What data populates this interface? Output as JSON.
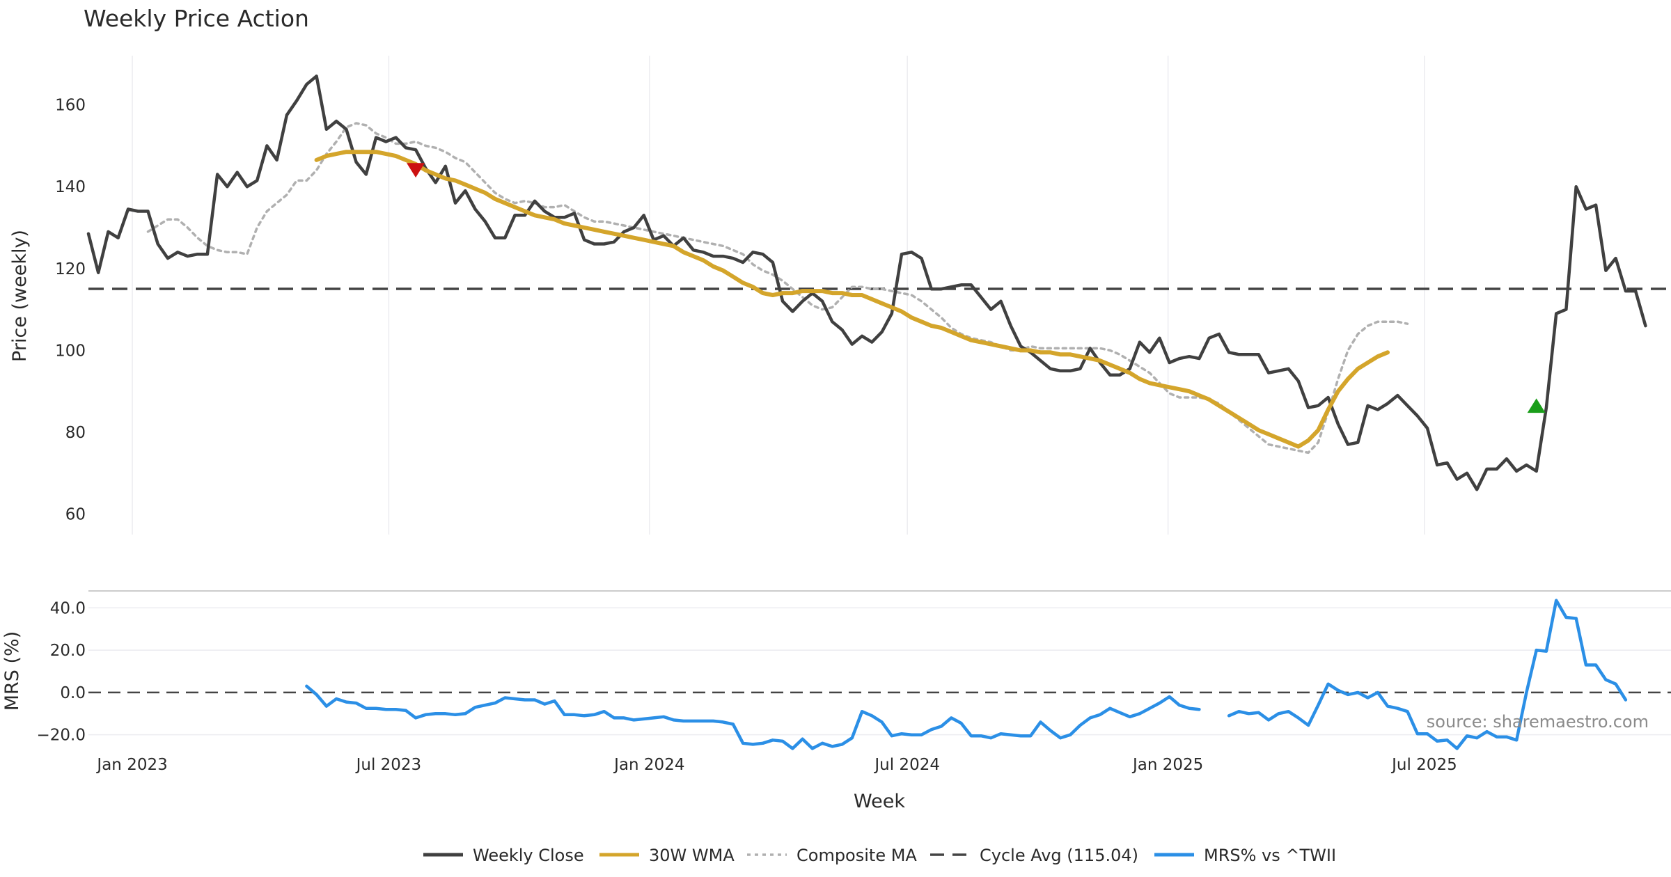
{
  "title": "Weekly Price Action",
  "source_label": "source: sharemaestro.com",
  "colors": {
    "close": "#404040",
    "wma": "#d4a52b",
    "composite": "#b0b0b0",
    "cycle": "#444444",
    "mrs": "#2b8fe6",
    "sell_marker": "#cc1111",
    "buy_marker": "#1a9e1a"
  },
  "legend": [
    {
      "key": "close",
      "label": "Weekly Close",
      "style": "solid"
    },
    {
      "key": "wma",
      "label": "30W WMA",
      "style": "solid"
    },
    {
      "key": "composite",
      "label": "Composite MA",
      "style": "dotted"
    },
    {
      "key": "cycle",
      "label": "Cycle Avg (115.04)",
      "style": "dashed"
    },
    {
      "key": "mrs",
      "label": "MRS% vs ^TWII",
      "style": "solid"
    }
  ],
  "chart_data": [
    {
      "type": "line",
      "panel": "price",
      "ylabel": "Price (weekly)",
      "ylim": [
        55,
        172
      ],
      "yticks": [
        60,
        80,
        100,
        120,
        140,
        160
      ],
      "x_dates": [
        "2022-12-01",
        "2025-12-22"
      ],
      "x_ticks": [
        {
          "date": "2023-01-01",
          "label": "Jan 2023"
        },
        {
          "date": "2023-07-01",
          "label": "Jul 2023"
        },
        {
          "date": "2024-01-01",
          "label": "Jan 2024"
        },
        {
          "date": "2024-07-01",
          "label": "Jul 2024"
        },
        {
          "date": "2025-01-01",
          "label": "Jan 2025"
        },
        {
          "date": "2025-07-01",
          "label": "Jul 2025"
        }
      ],
      "cycle_avg": 115.04,
      "series": [
        {
          "name": "Weekly Close",
          "key": "close",
          "start": "2022-12-01",
          "step_days": 7,
          "values": [
            128.5,
            119,
            129,
            127.5,
            134.5,
            134,
            134,
            126,
            122.5,
            124,
            123,
            123.5,
            123.5,
            143,
            140,
            143.5,
            140,
            141.5,
            150,
            146.5,
            157.5,
            161,
            165,
            167,
            154,
            156,
            154,
            146,
            143,
            152,
            151,
            152,
            149.5,
            149,
            144.5,
            141,
            145,
            136,
            139,
            134.5,
            131.5,
            127.5,
            127.5,
            133,
            133,
            136.5,
            134,
            132.5,
            132.5,
            133.5,
            127,
            126,
            126,
            126.5,
            129,
            130,
            133,
            127,
            128,
            125.5,
            127.5,
            124.5,
            124,
            123,
            123,
            122.5,
            121.5,
            124,
            123.5,
            121.5,
            112,
            109.5,
            112,
            114,
            112,
            107,
            105,
            101.5,
            103.5,
            102,
            104.5,
            109,
            123.5,
            124,
            122.5,
            115,
            115,
            115.5,
            116,
            116,
            113,
            110,
            112,
            106,
            101,
            99.5,
            97.5,
            95.5,
            95,
            95,
            95.5,
            100.5,
            97,
            94,
            94,
            95.5,
            102,
            99.5,
            103,
            97,
            98,
            98.5,
            98,
            103,
            104,
            99.5,
            99,
            99,
            99,
            94.5,
            95,
            95.5,
            92.5,
            86,
            86.5,
            88.5,
            82,
            77,
            77.5,
            86.5,
            85.5,
            87,
            89,
            86.5,
            84,
            81,
            72,
            72.5,
            68.5,
            70,
            66,
            71,
            71,
            73.5,
            70.5,
            72,
            70.5,
            86,
            109,
            110,
            140,
            134.5,
            135.5,
            119.5,
            122.5,
            114.5,
            114.5,
            106
          ]
        },
        {
          "name": "30W WMA",
          "key": "wma",
          "start": "2023-05-11",
          "step_days": 7,
          "values": [
            146.5,
            147.5,
            148,
            148.5,
            148.5,
            148.5,
            148.5,
            148,
            147.5,
            146.5,
            145.5,
            144,
            143,
            142,
            141.5,
            140.5,
            139.5,
            138.5,
            137,
            136,
            135,
            134,
            133,
            132.5,
            132,
            131,
            130.5,
            130,
            129.5,
            129,
            128.5,
            128,
            127.5,
            127,
            126.5,
            126,
            125.5,
            124,
            123,
            122,
            120.5,
            119.5,
            118,
            116.5,
            115.5,
            114,
            113.5,
            114,
            114,
            114.5,
            114.5,
            114.5,
            114,
            114,
            113.5,
            113.5,
            112.5,
            111.5,
            110.5,
            109.5,
            108,
            107,
            106,
            105.5,
            104.5,
            103.5,
            102.5,
            102,
            101.5,
            101,
            100.5,
            100,
            100,
            99.5,
            99.5,
            99,
            99,
            98.5,
            98,
            97.5,
            96.5,
            95.5,
            94.5,
            93,
            92,
            91.5,
            91,
            90.5,
            90,
            89,
            88,
            86.5,
            85,
            83.5,
            82,
            80.5,
            79.5,
            78.5,
            77.5,
            76.5,
            78,
            80.5,
            85.5,
            90,
            93,
            95.5,
            97,
            98.5,
            99.5
          ]
        },
        {
          "name": "Composite MA",
          "key": "composite",
          "start": "2023-01-12",
          "step_days": 7,
          "values": [
            129,
            130.5,
            132,
            132,
            130,
            127.5,
            125.5,
            124.5,
            124,
            124,
            123.5,
            130,
            134,
            136,
            138,
            141.5,
            141.5,
            144,
            148,
            151,
            154.5,
            155.5,
            155,
            153,
            152,
            150.5,
            150.5,
            151,
            150,
            149.5,
            148.5,
            147,
            146,
            143.5,
            141,
            138.5,
            137,
            136,
            136.5,
            136,
            135,
            135,
            135.5,
            134,
            132.5,
            131.5,
            131.5,
            131,
            130.5,
            130,
            129.5,
            129,
            128.5,
            128,
            127.5,
            127,
            126.5,
            126,
            125.5,
            124.5,
            123.5,
            121,
            119.5,
            118.5,
            117,
            115,
            113,
            111,
            110,
            110.5,
            113,
            115.5,
            115.5,
            115,
            115,
            114.5,
            114,
            113.5,
            112,
            110,
            108,
            105.5,
            104,
            103,
            102.5,
            102,
            101,
            100,
            100,
            101,
            100.5,
            100.5,
            100.5,
            100.5,
            100.5,
            100.5,
            100.5,
            100,
            99,
            97.5,
            96,
            94.5,
            92,
            89.5,
            88.5,
            88.5,
            88.5,
            88,
            87,
            85,
            83,
            81,
            79,
            77,
            76.5,
            76,
            75.5,
            75,
            77.5,
            85,
            93,
            100,
            104,
            106,
            107,
            107,
            107,
            106.5
          ]
        }
      ],
      "markers": [
        {
          "type": "sell",
          "date": "2023-07-20",
          "value": 144
        },
        {
          "type": "buy",
          "date": "2025-09-18",
          "value": 86.5
        }
      ]
    },
    {
      "type": "line",
      "panel": "mrs",
      "ylabel": "MRS (%)",
      "xlabel": "Week",
      "ylim": [
        -28,
        47
      ],
      "yticks": [
        -20.0,
        0.0,
        20.0,
        40.0
      ],
      "ytick_labels": [
        "−20.0",
        "0.0",
        "20.0",
        "40.0"
      ],
      "series": [
        {
          "name": "MRS% vs ^TWII",
          "key": "mrs",
          "start": "2023-05-04",
          "step_days": 7,
          "values": [
            3,
            -1,
            -6.5,
            -3,
            -4.5,
            -5,
            -7.5,
            -7.5,
            -8,
            -8,
            -8.5,
            -12,
            -10.5,
            -10,
            -10,
            -10.5,
            -10,
            -7,
            -6,
            -5,
            -2.5,
            -3,
            -3.5,
            -3.5,
            -5.5,
            -4,
            -10.5,
            -10.5,
            -11,
            -10.5,
            -9,
            -12,
            -12,
            -13,
            -12.5,
            -12,
            -11.5,
            -13,
            -13.5,
            -13.5,
            -13.5,
            -13.5,
            -14,
            -15,
            -24,
            -24.5,
            -24,
            -22.5,
            -23,
            -26.5,
            -22,
            -26.5,
            -24,
            -25.5,
            -24.5,
            -21.5,
            -9,
            -11,
            -14,
            -20.5,
            -19.5,
            -20,
            -20,
            -17.5,
            -16,
            -12,
            -14.5,
            -20.5,
            -20.5,
            -21.5,
            -19.5,
            -20,
            -20.5,
            -20.5,
            -14,
            -18,
            -21.5,
            -20,
            -15.5,
            -12,
            -10.5,
            -7.5,
            -9.5,
            -11.5,
            -10,
            -7.5,
            -5,
            -2,
            -6,
            -7.5,
            -8,
            null,
            null,
            -11,
            -9,
            -10,
            -9.5,
            -13,
            -10,
            -9,
            -12,
            -15.5,
            -6,
            4,
            1,
            -1,
            0,
            -2.5,
            0,
            -6.5,
            -7.5,
            -9,
            -19.5,
            -19.5,
            -23,
            -22.5,
            -26.5,
            -20.5,
            -21.5,
            -18.5,
            -21,
            -21,
            -22.5,
            0,
            20,
            19.5,
            43.5,
            35.5,
            35,
            13,
            13,
            6,
            4,
            -3.5
          ]
        }
      ]
    }
  ]
}
